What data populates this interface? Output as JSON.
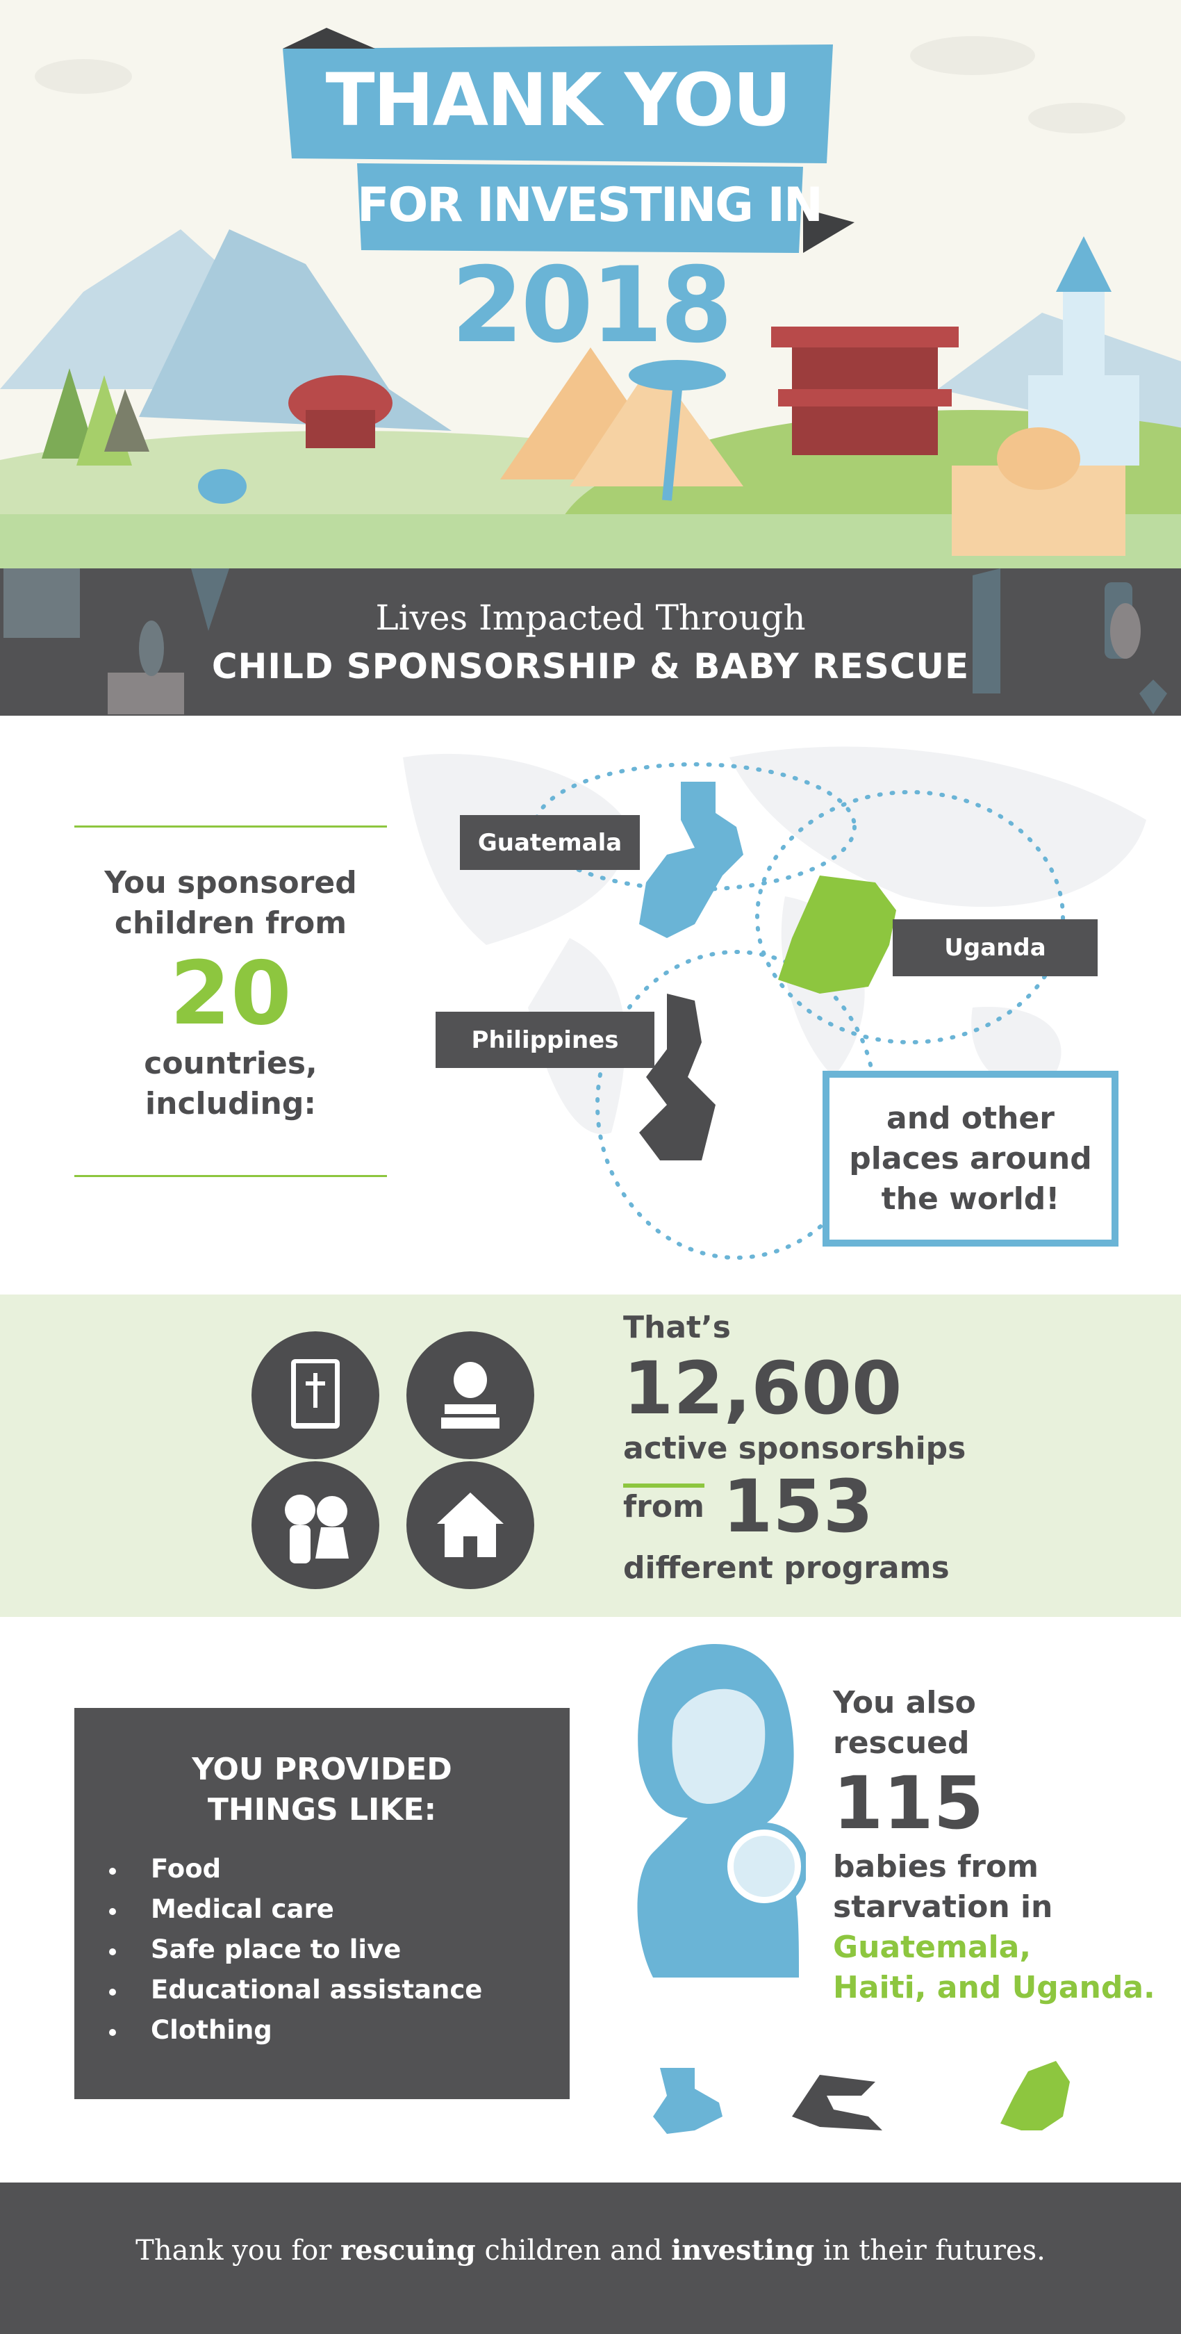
{
  "hero": {
    "line1": "THANK YOU",
    "line2": "FOR INVESTING IN",
    "year": "2018"
  },
  "band": {
    "line1": "Lives Impacted Through",
    "line2": "CHILD SPONSORSHIP & BABY RESCUE"
  },
  "countries": {
    "intro": "You sponsored children from",
    "count": "20",
    "outro": "countries, including:",
    "labels": [
      "Guatemala",
      "Uganda",
      "Philippines"
    ],
    "other": "and other places around the world!"
  },
  "sponsorships": {
    "thats": "That’s",
    "count": "12,600",
    "count_label": "active sponsorships",
    "from": "from",
    "programs": "153",
    "programs_label": "different programs",
    "icons": [
      "bible-icon",
      "apple-books-icon",
      "children-icon",
      "house-icon"
    ]
  },
  "provided": {
    "heading": "YOU PROVIDED THINGS LIKE:",
    "items": [
      "Food",
      "Medical care",
      "Safe place to live",
      "Educational assistance",
      "Clothing"
    ]
  },
  "rescue": {
    "line1": "You also",
    "line2": "rescued",
    "count": "115",
    "line3": "babies from",
    "line4": "starvation in",
    "countries1": "Guatemala,",
    "countries2": "Haiti, and Uganda."
  },
  "footer": {
    "part1": "Thank you for ",
    "bold1": "rescuing",
    "part2": " children and ",
    "bold2": "investing",
    "part3": " in their futures."
  },
  "colors": {
    "blue": "#6ab4d6",
    "green": "#8dc63f",
    "dark": "#525254",
    "light_green": "#e8f1dc"
  }
}
